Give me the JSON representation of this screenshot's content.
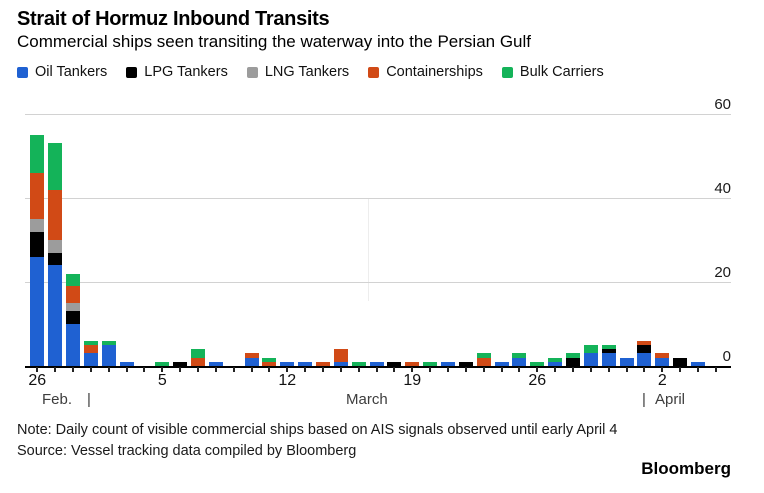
{
  "header": {
    "title": "Strait of Hormuz Inbound Transits",
    "subtitle": "Commercial ships seen transiting the waterway into the Persian Gulf"
  },
  "months": {
    "feb": "Feb.",
    "sep1": "|",
    "march": "March",
    "sep2": "|",
    "april": "April"
  },
  "footer": {
    "note": "Note: Daily count of visible commercial ships based on AIS signals observed until early April 4",
    "source": "Source: Vessel tracking data compiled by Bloomberg",
    "brand": "Bloomberg"
  },
  "chart_data": {
    "type": "bar",
    "stacked": true,
    "title": "Strait of Hormuz Inbound Transits",
    "subtitle": "Commercial ships seen transiting the waterway into the Persian Gulf",
    "xlabel": "",
    "ylabel": "",
    "ylim": [
      0,
      60
    ],
    "y_ticks": [
      0,
      20,
      40,
      60
    ],
    "grid": "horizontal",
    "legend_position": "top",
    "categories": [
      "Feb 26",
      "Feb 27",
      "Feb 28",
      "Mar 1",
      "Mar 2",
      "Mar 3",
      "Mar 4",
      "Mar 5",
      "Mar 6",
      "Mar 7",
      "Mar 8",
      "Mar 9",
      "Mar 10",
      "Mar 11",
      "Mar 12",
      "Mar 13",
      "Mar 14",
      "Mar 15",
      "Mar 16",
      "Mar 17",
      "Mar 18",
      "Mar 19",
      "Mar 20",
      "Mar 21",
      "Mar 22",
      "Mar 23",
      "Mar 24",
      "Mar 25",
      "Mar 26",
      "Mar 27",
      "Mar 28",
      "Mar 29",
      "Mar 30",
      "Mar 31",
      "Apr 1",
      "Apr 2",
      "Apr 3",
      "Apr 4"
    ],
    "series": [
      {
        "name": "Oil Tankers",
        "color": "#1f61d2",
        "values": [
          26,
          24,
          10,
          3,
          5,
          1,
          0,
          0,
          0,
          0,
          1,
          0,
          2,
          0,
          1,
          1,
          0,
          1,
          0,
          1,
          0,
          0,
          0,
          1,
          0,
          0,
          1,
          2,
          0,
          1,
          0,
          3,
          3,
          2,
          3,
          2,
          0,
          1
        ]
      },
      {
        "name": "LPG Tankers",
        "color": "#000000",
        "values": [
          6,
          3,
          3,
          0,
          0,
          0,
          0,
          0,
          1,
          0,
          0,
          0,
          0,
          0,
          0,
          0,
          0,
          0,
          0,
          0,
          1,
          0,
          0,
          0,
          1,
          0,
          0,
          0,
          0,
          0,
          2,
          0,
          1,
          0,
          2,
          0,
          2,
          0
        ]
      },
      {
        "name": "LNG Tankers",
        "color": "#9c9c9c",
        "values": [
          3,
          3,
          2,
          0,
          0,
          0,
          0,
          0,
          0,
          0,
          0,
          0,
          0,
          0,
          0,
          0,
          0,
          0,
          0,
          0,
          0,
          0,
          0,
          0,
          0,
          0,
          0,
          0,
          0,
          0,
          0,
          0,
          0,
          0,
          0,
          0,
          0,
          0
        ]
      },
      {
        "name": "Containerships",
        "color": "#d14a16",
        "values": [
          11,
          12,
          4,
          2,
          0,
          0,
          0,
          0,
          0,
          2,
          0,
          0,
          1,
          1,
          0,
          0,
          1,
          3,
          0,
          0,
          0,
          1,
          0,
          0,
          0,
          2,
          0,
          0,
          0,
          0,
          0,
          0,
          0,
          0,
          1,
          1,
          0,
          0
        ]
      },
      {
        "name": "Bulk Carriers",
        "color": "#14b359",
        "values": [
          9,
          11,
          3,
          1,
          1,
          0,
          0,
          1,
          0,
          2,
          0,
          0,
          0,
          1,
          0,
          0,
          0,
          0,
          1,
          0,
          0,
          0,
          1,
          0,
          0,
          1,
          0,
          1,
          1,
          1,
          1,
          2,
          1,
          0,
          0,
          0,
          0,
          0
        ]
      }
    ],
    "x_tick_labels": [
      {
        "index": 0,
        "label": "26"
      },
      {
        "index": 7,
        "label": "5"
      },
      {
        "index": 14,
        "label": "12"
      },
      {
        "index": 21,
        "label": "19"
      },
      {
        "index": 28,
        "label": "26"
      },
      {
        "index": 35,
        "label": "2"
      }
    ]
  }
}
